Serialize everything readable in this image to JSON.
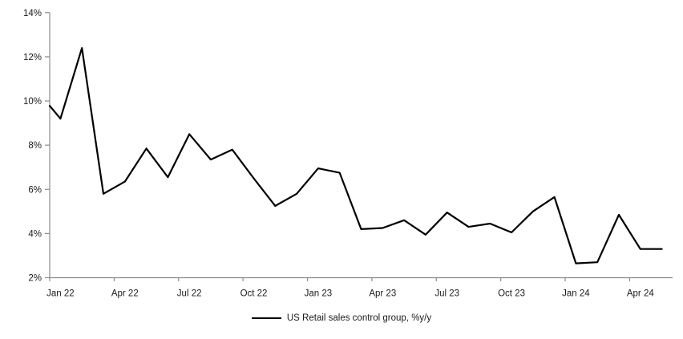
{
  "chart_data": {
    "type": "line",
    "title": "",
    "legend": {
      "label": "US Retail sales control group, %y/y",
      "position": "bottom-center",
      "swatch": "solid-black-line"
    },
    "style": {
      "line_color": "#000000",
      "line_width": 2.2,
      "axis_color": "#8c8c8c",
      "text_color": "#1a1a1a",
      "background": "#ffffff",
      "gridlines": false
    },
    "ylabel": "",
    "xlabel": "",
    "ylim": [
      2,
      14
    ],
    "y_step": 2,
    "y_tick_labels": [
      "2%",
      "4%",
      "6%",
      "8%",
      "10%",
      "12%",
      "14%"
    ],
    "x_tick_labels": [
      "Jan 22",
      "Apr 22",
      "Jul 22",
      "Oct 22",
      "Jan 23",
      "Apr 23",
      "Jul 23",
      "Oct 23",
      "Jan 24",
      "Apr 24"
    ],
    "x_tick_interval_months": 3,
    "axis_entry_value": 9.78,
    "x": [
      "Jan 22",
      "Feb 22",
      "Mar 22",
      "Apr 22",
      "May 22",
      "Jun 22",
      "Jul 22",
      "Aug 22",
      "Sep 22",
      "Oct 22",
      "Nov 22",
      "Dec 22",
      "Jan 23",
      "Feb 23",
      "Mar 23",
      "Apr 23",
      "May 23",
      "Jun 23",
      "Jul 23",
      "Aug 23",
      "Sep 23",
      "Oct 23",
      "Nov 23",
      "Dec 23",
      "Jan 24",
      "Feb 24",
      "Mar 24",
      "Apr 24",
      "May 24"
    ],
    "values": [
      9.2,
      12.4,
      5.8,
      6.35,
      7.85,
      6.55,
      8.5,
      7.35,
      7.8,
      6.5,
      5.25,
      5.8,
      6.95,
      6.75,
      4.2,
      4.25,
      4.6,
      3.95,
      4.95,
      4.3,
      4.45,
      4.05,
      5.0,
      5.65,
      2.65,
      2.7,
      4.85,
      3.3,
      3.3
    ]
  }
}
